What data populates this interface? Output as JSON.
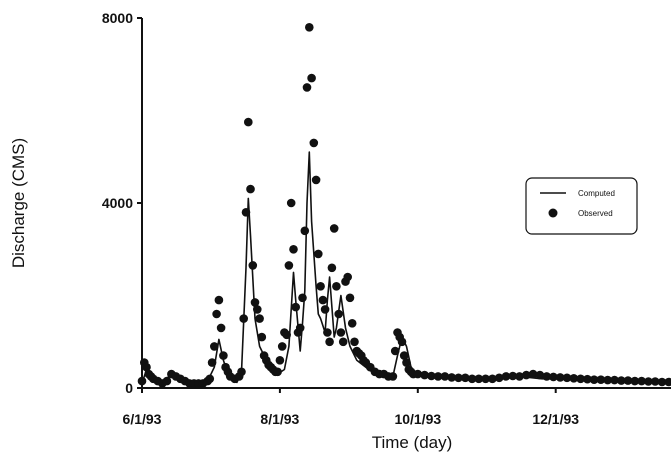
{
  "chart_data": {
    "type": "line",
    "title": "",
    "xlabel": "Time (day)",
    "ylabel": "Discharge (CMS)",
    "x_ticks": [
      "6/1/93",
      "8/1/93",
      "10/1/93",
      "12/1/93"
    ],
    "y_ticks": [
      "0",
      "4000",
      "8000"
    ],
    "xlim": [
      "1993-06-01",
      "1994-01-21"
    ],
    "ylim": [
      0,
      8000
    ],
    "grid": false,
    "legend": {
      "position": "right",
      "entries": [
        "Computed",
        "Observed"
      ]
    },
    "colors": {
      "computed": "#111111",
      "observed": "#111111"
    },
    "series": [
      {
        "name": "Computed",
        "style": "line",
        "points": [
          [
            "1993-06-01",
            100
          ],
          [
            "1993-06-03",
            400
          ],
          [
            "1993-06-05",
            300
          ],
          [
            "1993-06-08",
            150
          ],
          [
            "1993-06-11",
            100
          ],
          [
            "1993-06-14",
            350
          ],
          [
            "1993-06-17",
            200
          ],
          [
            "1993-06-20",
            120
          ],
          [
            "1993-06-25",
            100
          ],
          [
            "1993-06-30",
            150
          ],
          [
            "1993-07-03",
            450
          ],
          [
            "1993-07-05",
            1050
          ],
          [
            "1993-07-07",
            600
          ],
          [
            "1993-07-09",
            300
          ],
          [
            "1993-07-11",
            150
          ],
          [
            "1993-07-13",
            120
          ],
          [
            "1993-07-15",
            350
          ],
          [
            "1993-07-17",
            2600
          ],
          [
            "1993-07-18",
            4100
          ],
          [
            "1993-07-19",
            3300
          ],
          [
            "1993-07-21",
            1500
          ],
          [
            "1993-07-23",
            900
          ],
          [
            "1993-07-25",
            700
          ],
          [
            "1993-07-28",
            400
          ],
          [
            "1993-07-31",
            300
          ],
          [
            "1993-08-03",
            400
          ],
          [
            "1993-08-05",
            900
          ],
          [
            "1993-08-07",
            2500
          ],
          [
            "1993-08-08",
            1900
          ],
          [
            "1993-08-10",
            800
          ],
          [
            "1993-08-11",
            1400
          ],
          [
            "1993-08-12",
            2100
          ],
          [
            "1993-08-13",
            4000
          ],
          [
            "1993-08-14",
            5100
          ],
          [
            "1993-08-15",
            3600
          ],
          [
            "1993-08-17",
            2200
          ],
          [
            "1993-08-18",
            1600
          ],
          [
            "1993-08-19",
            1500
          ],
          [
            "1993-08-21",
            1200
          ],
          [
            "1993-08-22",
            1900
          ],
          [
            "1993-08-23",
            2400
          ],
          [
            "1993-08-25",
            1100
          ],
          [
            "1993-08-26",
            1300
          ],
          [
            "1993-08-28",
            2000
          ],
          [
            "1993-08-30",
            1300
          ],
          [
            "1993-09-01",
            900
          ],
          [
            "1993-09-04",
            600
          ],
          [
            "1993-09-08",
            450
          ],
          [
            "1993-09-12",
            300
          ],
          [
            "1993-09-16",
            250
          ],
          [
            "1993-09-20",
            250
          ],
          [
            "1993-09-22",
            700
          ],
          [
            "1993-09-24",
            1100
          ],
          [
            "1993-09-26",
            900
          ],
          [
            "1993-09-28",
            450
          ],
          [
            "1993-09-30",
            300
          ],
          [
            "1993-10-05",
            250
          ],
          [
            "1993-10-15",
            220
          ],
          [
            "1993-10-25",
            200
          ],
          [
            "1993-11-05",
            200
          ],
          [
            "1993-11-15",
            250
          ],
          [
            "1993-11-25",
            200
          ],
          [
            "1993-12-05",
            200
          ],
          [
            "1993-12-15",
            180
          ],
          [
            "1993-12-25",
            170
          ],
          [
            "1994-01-05",
            150
          ],
          [
            "1994-01-15",
            140
          ],
          [
            "1994-01-21",
            130
          ]
        ]
      },
      {
        "name": "Observed",
        "style": "points",
        "points": [
          [
            "1993-06-01",
            150
          ],
          [
            "1993-06-02",
            550
          ],
          [
            "1993-06-03",
            450
          ],
          [
            "1993-06-04",
            300
          ],
          [
            "1993-06-05",
            250
          ],
          [
            "1993-06-06",
            200
          ],
          [
            "1993-06-08",
            150
          ],
          [
            "1993-06-10",
            100
          ],
          [
            "1993-06-12",
            150
          ],
          [
            "1993-06-14",
            300
          ],
          [
            "1993-06-16",
            250
          ],
          [
            "1993-06-18",
            200
          ],
          [
            "1993-06-20",
            150
          ],
          [
            "1993-06-22",
            100
          ],
          [
            "1993-06-24",
            100
          ],
          [
            "1993-06-26",
            100
          ],
          [
            "1993-06-28",
            100
          ],
          [
            "1993-06-30",
            150
          ],
          [
            "1993-07-01",
            200
          ],
          [
            "1993-07-02",
            550
          ],
          [
            "1993-07-03",
            900
          ],
          [
            "1993-07-04",
            1600
          ],
          [
            "1993-07-05",
            1900
          ],
          [
            "1993-07-06",
            1300
          ],
          [
            "1993-07-07",
            700
          ],
          [
            "1993-07-08",
            450
          ],
          [
            "1993-07-09",
            350
          ],
          [
            "1993-07-10",
            250
          ],
          [
            "1993-07-12",
            200
          ],
          [
            "1993-07-14",
            250
          ],
          [
            "1993-07-15",
            350
          ],
          [
            "1993-07-16",
            1500
          ],
          [
            "1993-07-17",
            3800
          ],
          [
            "1993-07-18",
            5750
          ],
          [
            "1993-07-19",
            4300
          ],
          [
            "1993-07-20",
            2650
          ],
          [
            "1993-07-21",
            1850
          ],
          [
            "1993-07-22",
            1700
          ],
          [
            "1993-07-23",
            1500
          ],
          [
            "1993-07-24",
            1100
          ],
          [
            "1993-07-25",
            700
          ],
          [
            "1993-07-26",
            600
          ],
          [
            "1993-07-27",
            500
          ],
          [
            "1993-07-28",
            450
          ],
          [
            "1993-07-29",
            400
          ],
          [
            "1993-07-30",
            350
          ],
          [
            "1993-07-31",
            350
          ],
          [
            "1993-08-01",
            600
          ],
          [
            "1993-08-02",
            900
          ],
          [
            "1993-08-03",
            1200
          ],
          [
            "1993-08-04",
            1150
          ],
          [
            "1993-08-05",
            2650
          ],
          [
            "1993-08-06",
            4000
          ],
          [
            "1993-08-07",
            3000
          ],
          [
            "1993-08-08",
            1750
          ],
          [
            "1993-08-09",
            1200
          ],
          [
            "1993-08-10",
            1300
          ],
          [
            "1993-08-11",
            1950
          ],
          [
            "1993-08-12",
            3400
          ],
          [
            "1993-08-13",
            6500
          ],
          [
            "1993-08-14",
            7800
          ],
          [
            "1993-08-15",
            6700
          ],
          [
            "1993-08-16",
            5300
          ],
          [
            "1993-08-17",
            4500
          ],
          [
            "1993-08-18",
            2900
          ],
          [
            "1993-08-19",
            2200
          ],
          [
            "1993-08-20",
            1900
          ],
          [
            "1993-08-21",
            1700
          ],
          [
            "1993-08-22",
            1200
          ],
          [
            "1993-08-23",
            1000
          ],
          [
            "1993-08-24",
            2600
          ],
          [
            "1993-08-25",
            3450
          ],
          [
            "1993-08-26",
            2200
          ],
          [
            "1993-08-27",
            1600
          ],
          [
            "1993-08-28",
            1200
          ],
          [
            "1993-08-29",
            1000
          ],
          [
            "1993-08-30",
            2300
          ],
          [
            "1993-08-31",
            2400
          ],
          [
            "1993-09-01",
            1950
          ],
          [
            "1993-09-02",
            1400
          ],
          [
            "1993-09-03",
            1000
          ],
          [
            "1993-09-04",
            800
          ],
          [
            "1993-09-05",
            750
          ],
          [
            "1993-09-06",
            700
          ],
          [
            "1993-09-07",
            600
          ],
          [
            "1993-09-08",
            550
          ],
          [
            "1993-09-10",
            450
          ],
          [
            "1993-09-12",
            350
          ],
          [
            "1993-09-14",
            300
          ],
          [
            "1993-09-16",
            300
          ],
          [
            "1993-09-18",
            250
          ],
          [
            "1993-09-20",
            250
          ],
          [
            "1993-09-21",
            800
          ],
          [
            "1993-09-22",
            1200
          ],
          [
            "1993-09-23",
            1100
          ],
          [
            "1993-09-24",
            1000
          ],
          [
            "1993-09-25",
            700
          ],
          [
            "1993-09-26",
            550
          ],
          [
            "1993-09-27",
            400
          ],
          [
            "1993-09-28",
            350
          ],
          [
            "1993-09-29",
            300
          ],
          [
            "1993-10-01",
            300
          ],
          [
            "1993-10-04",
            280
          ],
          [
            "1993-10-07",
            260
          ],
          [
            "1993-10-10",
            250
          ],
          [
            "1993-10-13",
            250
          ],
          [
            "1993-10-16",
            230
          ],
          [
            "1993-10-19",
            220
          ],
          [
            "1993-10-22",
            220
          ],
          [
            "1993-10-25",
            200
          ],
          [
            "1993-10-28",
            200
          ],
          [
            "1993-10-31",
            200
          ],
          [
            "1993-11-03",
            200
          ],
          [
            "1993-11-06",
            220
          ],
          [
            "1993-11-09",
            250
          ],
          [
            "1993-11-12",
            260
          ],
          [
            "1993-11-15",
            250
          ],
          [
            "1993-11-18",
            280
          ],
          [
            "1993-11-21",
            300
          ],
          [
            "1993-11-24",
            280
          ],
          [
            "1993-11-27",
            250
          ],
          [
            "1993-11-30",
            240
          ],
          [
            "1993-12-03",
            230
          ],
          [
            "1993-12-06",
            220
          ],
          [
            "1993-12-09",
            210
          ],
          [
            "1993-12-12",
            200
          ],
          [
            "1993-12-15",
            190
          ],
          [
            "1993-12-18",
            180
          ],
          [
            "1993-12-21",
            180
          ],
          [
            "1993-12-24",
            170
          ],
          [
            "1993-12-27",
            170
          ],
          [
            "1993-12-30",
            160
          ],
          [
            "1994-01-02",
            160
          ],
          [
            "1994-01-05",
            150
          ],
          [
            "1994-01-08",
            150
          ],
          [
            "1994-01-11",
            140
          ],
          [
            "1994-01-14",
            140
          ],
          [
            "1994-01-17",
            130
          ],
          [
            "1994-01-20",
            130
          ]
        ]
      }
    ]
  }
}
